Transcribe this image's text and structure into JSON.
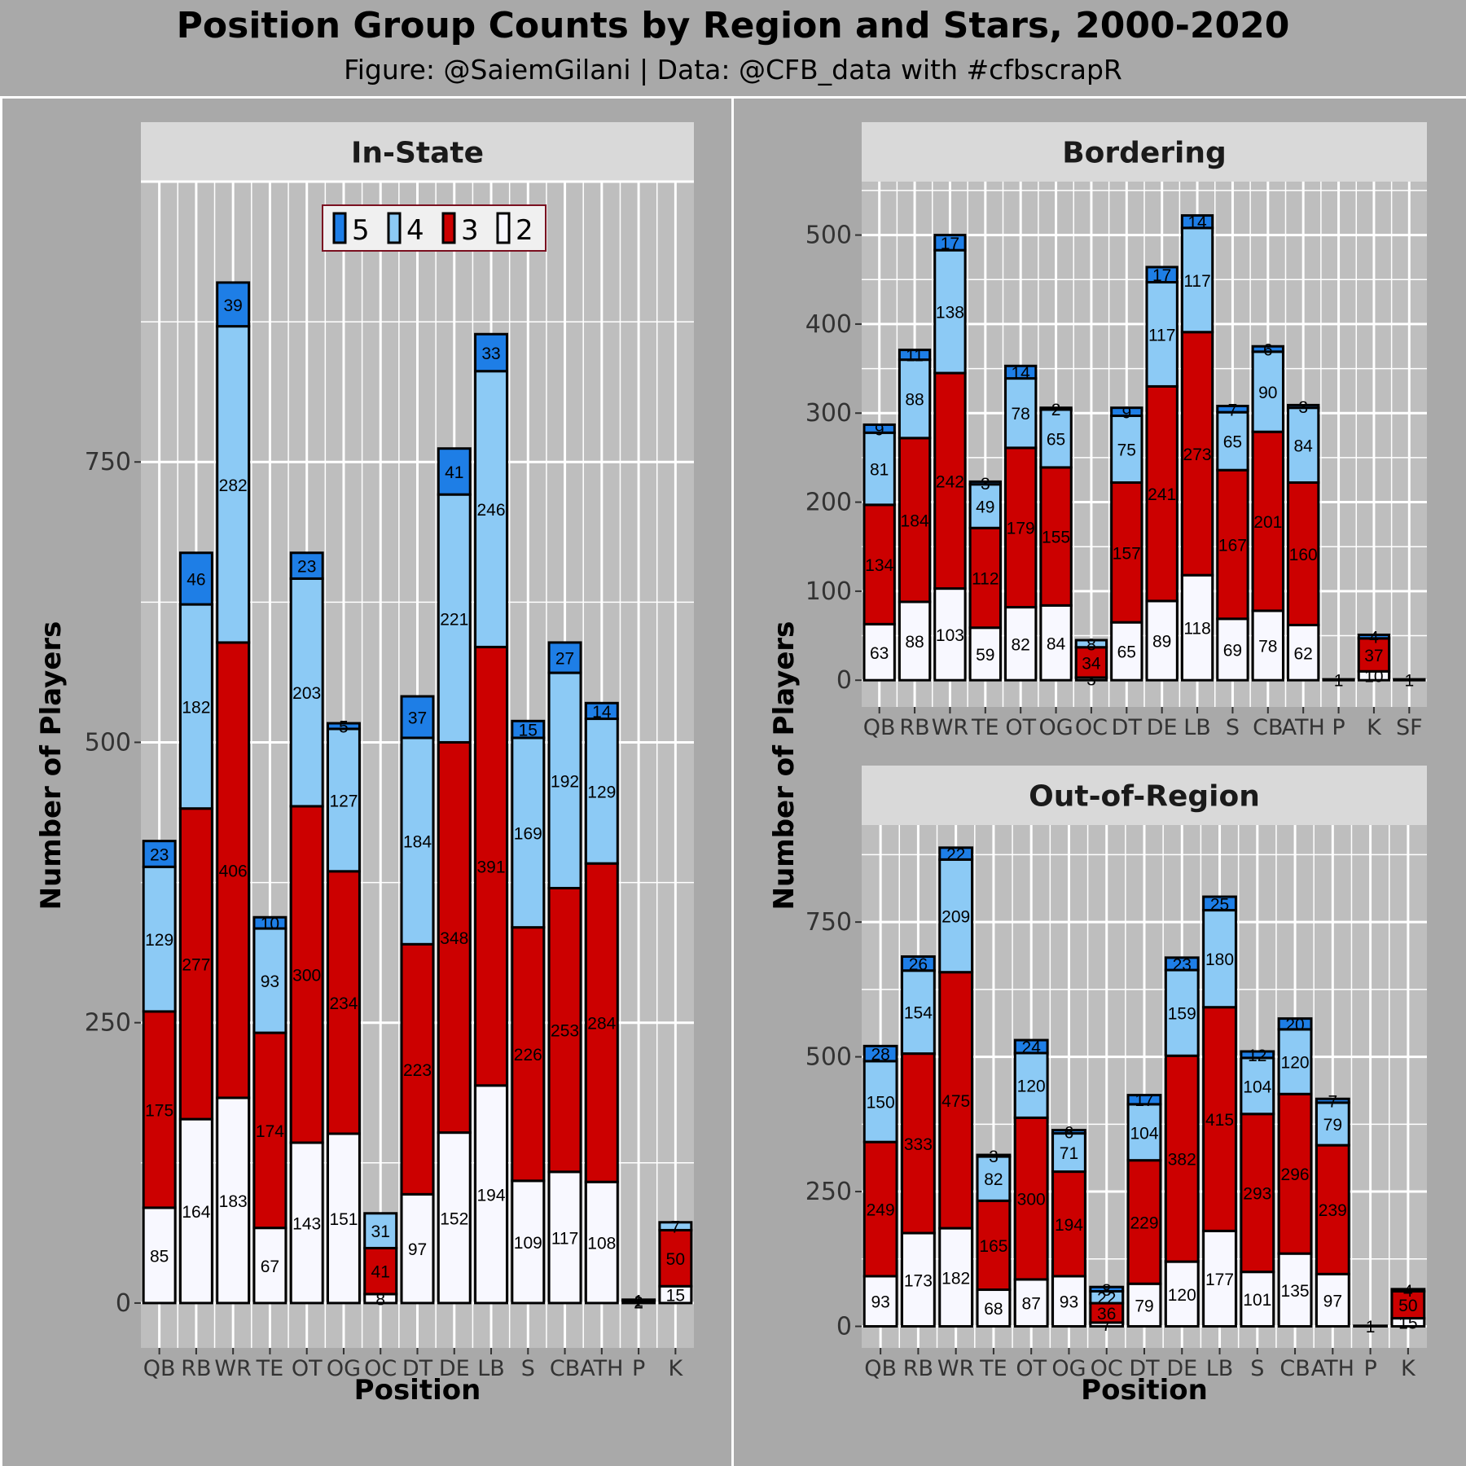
{
  "title": "Position Group Counts by Region and Stars, 2000-2020",
  "subtitle": "Figure: @SaiemGilani | Data: @CFB_data with #cfbscrapR",
  "colors": {
    "5": "#1e7ee6",
    "4": "#8ccaf5",
    "3": "#cc0000",
    "2": "#f8f8ff",
    "panel": "#bebebe",
    "strip": "#d9d9d9",
    "grid": "#ffffff"
  },
  "chart_data": [
    {
      "type": "bar",
      "stacked": true,
      "panel": "In-State",
      "xlabel": "Position",
      "ylabel": "Number of Players",
      "ylim": [
        -40,
        1000
      ],
      "yticks": [
        0,
        250,
        500,
        750
      ],
      "legend": {
        "placement": "top-center",
        "labels": [
          "5",
          "4",
          "3",
          "2"
        ]
      },
      "categories": [
        "QB",
        "RB",
        "WR",
        "TE",
        "OT",
        "OG",
        "OC",
        "DT",
        "DE",
        "LB",
        "S",
        "CB",
        "ATH",
        "P",
        "K"
      ],
      "series": [
        {
          "name": "2",
          "values": [
            85,
            164,
            183,
            67,
            143,
            151,
            8,
            97,
            152,
            194,
            109,
            117,
            108,
            2,
            15
          ]
        },
        {
          "name": "3",
          "values": [
            175,
            277,
            406,
            174,
            300,
            234,
            41,
            223,
            348,
            391,
            226,
            253,
            284,
            1,
            50
          ]
        },
        {
          "name": "4",
          "values": [
            129,
            182,
            282,
            93,
            203,
            127,
            31,
            184,
            221,
            246,
            169,
            192,
            129,
            0,
            7
          ]
        },
        {
          "name": "5",
          "values": [
            23,
            46,
            39,
            10,
            23,
            5,
            0,
            37,
            41,
            33,
            15,
            27,
            14,
            0,
            0
          ]
        }
      ]
    },
    {
      "type": "bar",
      "stacked": true,
      "panel": "Bordering",
      "xlabel": "",
      "ylabel": "Number of Players",
      "ylim": [
        -30,
        560
      ],
      "yticks": [
        0,
        100,
        200,
        300,
        400,
        500
      ],
      "categories": [
        "QB",
        "RB",
        "WR",
        "TE",
        "OT",
        "OG",
        "OC",
        "DT",
        "DE",
        "LB",
        "S",
        "CB",
        "ATH",
        "P",
        "K",
        "SF"
      ],
      "series": [
        {
          "name": "2",
          "values": [
            63,
            88,
            103,
            59,
            82,
            84,
            3,
            65,
            89,
            118,
            69,
            78,
            62,
            1,
            10,
            1
          ]
        },
        {
          "name": "3",
          "values": [
            134,
            184,
            242,
            112,
            179,
            155,
            34,
            157,
            241,
            273,
            167,
            201,
            160,
            0,
            37,
            0
          ]
        },
        {
          "name": "4",
          "values": [
            81,
            88,
            138,
            49,
            78,
            65,
            8,
            75,
            117,
            117,
            65,
            90,
            84,
            0,
            0,
            0
          ]
        },
        {
          "name": "5",
          "values": [
            9,
            11,
            17,
            3,
            14,
            2,
            0,
            9,
            17,
            14,
            7,
            6,
            3,
            0,
            4,
            0
          ]
        }
      ]
    },
    {
      "type": "bar",
      "stacked": true,
      "panel": "Out-of-Region",
      "xlabel": "Position",
      "ylabel": "Number of Players",
      "ylim": [
        -40,
        930
      ],
      "yticks": [
        0,
        250,
        500,
        750
      ],
      "categories": [
        "QB",
        "RB",
        "WR",
        "TE",
        "OT",
        "OG",
        "OC",
        "DT",
        "DE",
        "LB",
        "S",
        "CB",
        "ATH",
        "P",
        "K"
      ],
      "series": [
        {
          "name": "2",
          "values": [
            93,
            173,
            182,
            68,
            87,
            93,
            7,
            79,
            120,
            177,
            101,
            135,
            97,
            1,
            15
          ]
        },
        {
          "name": "3",
          "values": [
            249,
            333,
            475,
            165,
            300,
            194,
            36,
            229,
            382,
            415,
            293,
            296,
            239,
            0,
            50
          ]
        },
        {
          "name": "4",
          "values": [
            150,
            154,
            209,
            82,
            120,
            71,
            22,
            104,
            159,
            180,
            104,
            120,
            79,
            0,
            0
          ]
        },
        {
          "name": "5",
          "values": [
            28,
            26,
            22,
            3,
            24,
            6,
            8,
            17,
            23,
            25,
            12,
            20,
            7,
            0,
            4
          ]
        }
      ]
    }
  ]
}
